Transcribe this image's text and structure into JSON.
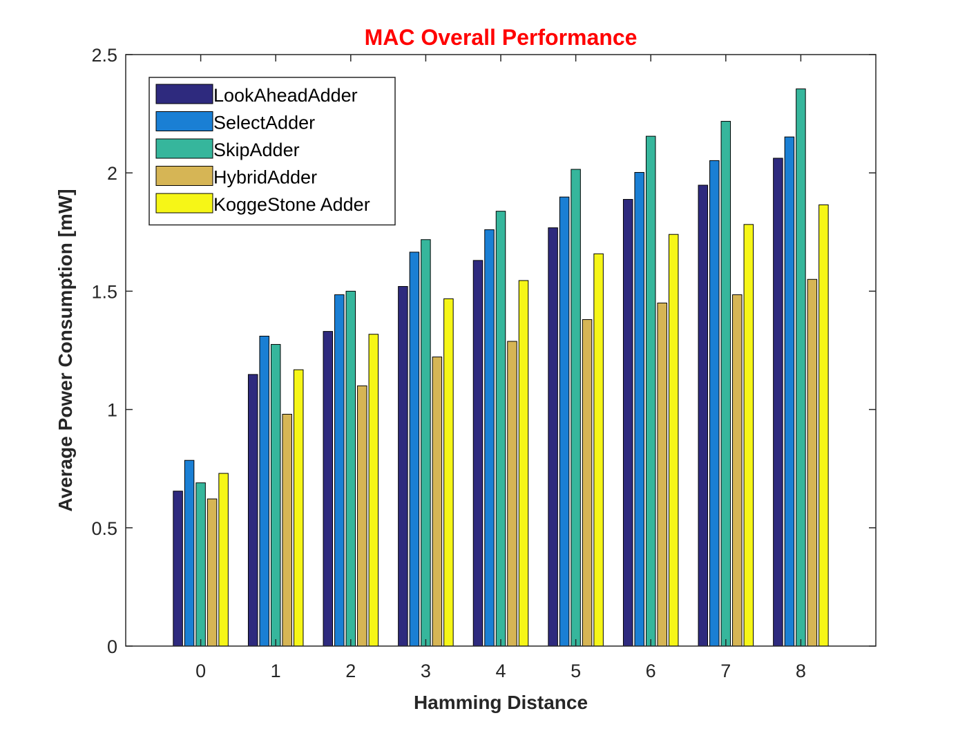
{
  "chart_data": {
    "type": "bar",
    "title": "MAC Overall Performance",
    "title_color": "#ff0000",
    "xlabel": "Hamming Distance",
    "ylabel": "Average Power Consumption [mW]",
    "categories": [
      "0",
      "1",
      "2",
      "3",
      "4",
      "5",
      "6",
      "7",
      "8"
    ],
    "ylim": [
      0,
      2.5
    ],
    "yticks": [
      "0",
      "0.5",
      "1",
      "1.5",
      "2",
      "2.5"
    ],
    "grid": false,
    "legend_position": "top-left",
    "series": [
      {
        "name": "LookAheadAdder",
        "color": "#2e2a7e",
        "values": [
          0.655,
          1.148,
          1.33,
          1.52,
          1.63,
          1.768,
          1.888,
          1.948,
          2.062
        ]
      },
      {
        "name": "SelectAdder",
        "color": "#1a7fd4",
        "values": [
          0.785,
          1.31,
          1.485,
          1.665,
          1.76,
          1.898,
          2.002,
          2.052,
          2.152
        ]
      },
      {
        "name": "SkipAdder",
        "color": "#36b69c",
        "values": [
          0.69,
          1.275,
          1.5,
          1.718,
          1.838,
          2.015,
          2.155,
          2.218,
          2.355
        ]
      },
      {
        "name": "HybridAdder",
        "color": "#d6b555",
        "values": [
          0.622,
          0.98,
          1.1,
          1.222,
          1.288,
          1.38,
          1.45,
          1.485,
          1.55
        ]
      },
      {
        "name": "KoggeStone Adder",
        "color": "#f6f617",
        "values": [
          0.73,
          1.168,
          1.318,
          1.468,
          1.545,
          1.658,
          1.74,
          1.782,
          1.865
        ]
      }
    ]
  }
}
